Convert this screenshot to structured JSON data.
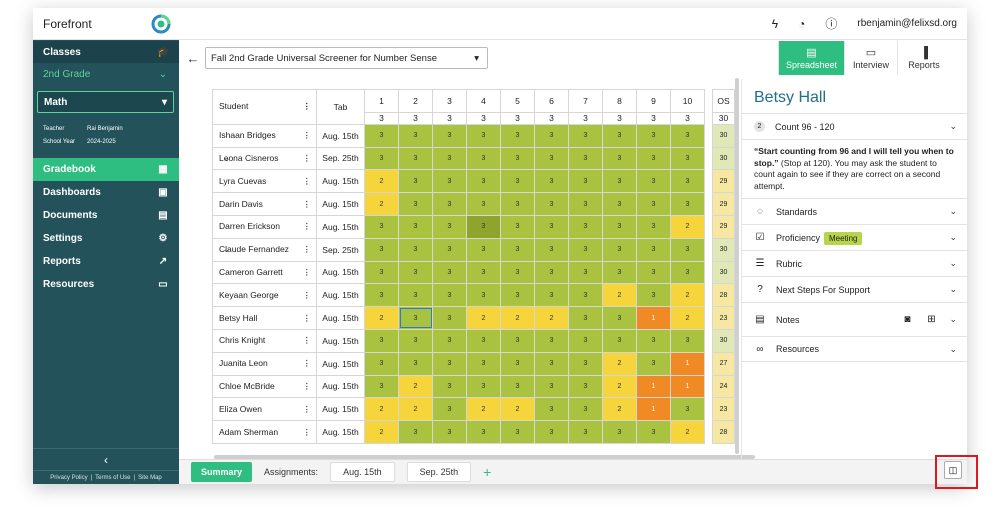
{
  "app": {
    "name": "Forefront",
    "user": "rbenjamin@felixsd.org"
  },
  "sidebar": {
    "classes_label": "Classes",
    "grade_label": "2nd Grade",
    "subject": "Math",
    "teacher_key": "Teacher",
    "teacher_value": "Rai Benjamin",
    "year_key": "School Year",
    "year_value": "2024-2025",
    "nav": [
      {
        "label": "Gradebook",
        "icon": "grid-icon"
      },
      {
        "label": "Dashboards",
        "icon": "dashboard-icon"
      },
      {
        "label": "Documents",
        "icon": "document-icon"
      },
      {
        "label": "Settings",
        "icon": "gear-icon"
      },
      {
        "label": "Reports",
        "icon": "chart-icon"
      },
      {
        "label": "Resources",
        "icon": "folder-icon"
      }
    ],
    "footer": [
      "Privacy Policy",
      "Terms of Use",
      "Site Map"
    ]
  },
  "toolbar": {
    "assessment": "Fall 2nd Grade Universal Screener for Number Sense"
  },
  "views": [
    {
      "label": "Spreadsheet",
      "active": true
    },
    {
      "label": "Interview",
      "active": false
    },
    {
      "label": "Reports",
      "active": false
    }
  ],
  "grid": {
    "header_student": "Student",
    "header_tab": "Tab",
    "columns": [
      "1",
      "2",
      "3",
      "4",
      "5",
      "6",
      "7",
      "8",
      "9",
      "10"
    ],
    "column_max": [
      "3",
      "3",
      "3",
      "3",
      "3",
      "3",
      "3",
      "3",
      "3",
      "3"
    ],
    "os_label": "OS",
    "os_max": "30",
    "rows": [
      {
        "name": "Ishaan Bridges",
        "date": "Aug. 15th",
        "scores": [
          "3",
          "3",
          "3",
          "3",
          "3",
          "3",
          "3",
          "3",
          "3",
          "3"
        ],
        "os": "30"
      },
      {
        "name": "Leona Cisneros",
        "date": "Sep. 25th",
        "scores": [
          "3",
          "3",
          "3",
          "3",
          "3",
          "3",
          "3",
          "3",
          "3",
          "3"
        ],
        "os": "30"
      },
      {
        "name": "Lyra Cuevas",
        "date": "Aug. 15th",
        "scores": [
          "2",
          "3",
          "3",
          "3",
          "3",
          "3",
          "3",
          "3",
          "3",
          "3"
        ],
        "os": "29"
      },
      {
        "name": "Darin Davis",
        "date": "Aug. 15th",
        "scores": [
          "2",
          "3",
          "3",
          "3",
          "3",
          "3",
          "3",
          "3",
          "3",
          "3"
        ],
        "os": "29"
      },
      {
        "name": "Darren Erickson",
        "date": "Aug. 15th",
        "scores": [
          "3",
          "3",
          "3",
          "3",
          "3",
          "3",
          "3",
          "3",
          "3",
          "2"
        ],
        "os": "29"
      },
      {
        "name": "Claude Fernandez",
        "date": "Sep. 25th",
        "scores": [
          "3",
          "3",
          "3",
          "3",
          "3",
          "3",
          "3",
          "3",
          "3",
          "3"
        ],
        "os": "30"
      },
      {
        "name": "Cameron Garrett",
        "date": "Aug. 15th",
        "scores": [
          "3",
          "3",
          "3",
          "3",
          "3",
          "3",
          "3",
          "3",
          "3",
          "3"
        ],
        "os": "30"
      },
      {
        "name": "Keyaan George",
        "date": "Aug. 15th",
        "scores": [
          "3",
          "3",
          "3",
          "3",
          "3",
          "3",
          "3",
          "2",
          "3",
          "2"
        ],
        "os": "28"
      },
      {
        "name": "Betsy Hall",
        "date": "Aug. 15th",
        "scores": [
          "2",
          "3",
          "3",
          "2",
          "2",
          "2",
          "3",
          "3",
          "1",
          "2"
        ],
        "os": "23"
      },
      {
        "name": "Chris Knight",
        "date": "Aug. 15th",
        "scores": [
          "3",
          "3",
          "3",
          "3",
          "3",
          "3",
          "3",
          "3",
          "3",
          "3"
        ],
        "os": "30"
      },
      {
        "name": "Juanita Leon",
        "date": "Aug. 15th",
        "scores": [
          "3",
          "3",
          "3",
          "3",
          "3",
          "3",
          "3",
          "2",
          "3",
          "1"
        ],
        "os": "27"
      },
      {
        "name": "Chloe McBride",
        "date": "Aug. 15th",
        "scores": [
          "3",
          "2",
          "3",
          "3",
          "3",
          "3",
          "3",
          "2",
          "1",
          "1"
        ],
        "os": "24"
      },
      {
        "name": "Eliza Owen",
        "date": "Aug. 15th",
        "scores": [
          "2",
          "2",
          "3",
          "2",
          "2",
          "3",
          "3",
          "2",
          "1",
          "3"
        ],
        "os": "23"
      },
      {
        "name": "Adam Sherman",
        "date": "Aug. 15th",
        "scores": [
          "2",
          "3",
          "3",
          "3",
          "3",
          "3",
          "3",
          "3",
          "3",
          "2"
        ],
        "os": "28"
      }
    ]
  },
  "panel": {
    "student": "Betsy Hall",
    "item_num": "2",
    "item_title": "Count 96 - 120",
    "prompt_bold": "“Start counting from 96 and I will tell you when to stop.”",
    "prompt_rest": " (Stop at 120). You may ask the student to count again to see if they are correct on a second attempt.",
    "sections": {
      "standards": "Standards",
      "proficiency": "Proficiency",
      "proficiency_badge": "Meeting",
      "rubric": "Rubric",
      "next_steps": "Next Steps For Support",
      "notes": "Notes",
      "resources": "Resources"
    }
  },
  "bottombar": {
    "summary": "Summary",
    "assignments_label": "Assignments:",
    "assignments": [
      "Aug. 15th",
      "Sep. 25th"
    ]
  },
  "colors": {
    "green": "#a9c23f",
    "yellow": "#f6d43c",
    "orange": "#f08a24",
    "accent": "#2fbe82",
    "sidebar": "#23525b"
  }
}
